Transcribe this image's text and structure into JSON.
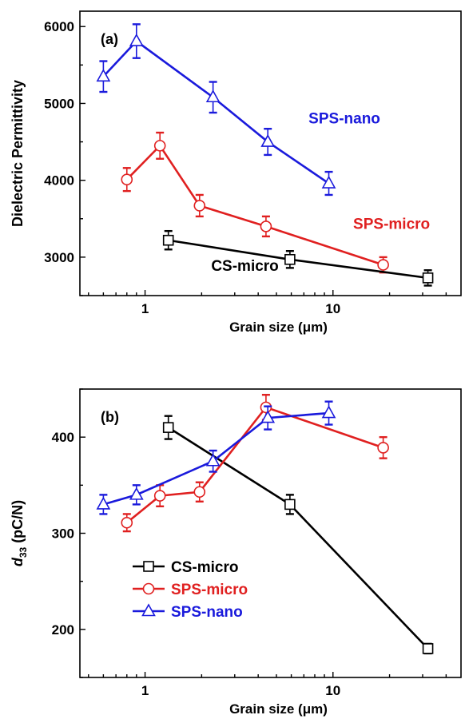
{
  "chart_data": [
    {
      "type": "line",
      "panel_label": "(a)",
      "xlabel": "Grain size (μm)",
      "ylabel": "Dielectric Permittivity",
      "xscale": "log",
      "xlim": [
        0.45,
        48
      ],
      "ylim": [
        2500,
        6200
      ],
      "xticks": [
        {
          "v": 1,
          "label": "1"
        },
        {
          "v": 10,
          "label": "10"
        }
      ],
      "yticks": [
        {
          "v": 3000,
          "label": "3000"
        },
        {
          "v": 4000,
          "label": "4000"
        },
        {
          "v": 5000,
          "label": "5000"
        },
        {
          "v": 6000,
          "label": "6000"
        }
      ],
      "legend": "none (inline series labels)",
      "series": [
        {
          "name": "SPS-nano",
          "color": "#1a1adc",
          "marker": "triangle",
          "x": [
            0.6,
            0.9,
            2.3,
            4.5,
            9.5
          ],
          "y": [
            5350,
            5810,
            5080,
            4500,
            3960
          ],
          "err": [
            200,
            220,
            200,
            170,
            150
          ]
        },
        {
          "name": "SPS-micro",
          "color": "#e02020",
          "marker": "circle",
          "x": [
            0.8,
            1.2,
            1.95,
            4.4,
            18.5
          ],
          "y": [
            4010,
            4450,
            3670,
            3400,
            2900
          ],
          "err": [
            150,
            170,
            140,
            130,
            100
          ]
        },
        {
          "name": "CS-micro",
          "color": "#000000",
          "marker": "square",
          "x": [
            1.33,
            5.9,
            32
          ],
          "y": [
            3220,
            2970,
            2730
          ],
          "err": [
            120,
            110,
            100
          ]
        }
      ],
      "annotations": [
        {
          "text": "SPS-nano",
          "color": "#1a1adc",
          "x": 11.5,
          "y": 4740
        },
        {
          "text": "SPS-micro",
          "color": "#e02020",
          "x": 20.5,
          "y": 3370
        },
        {
          "text": "CS-micro",
          "color": "#000000",
          "x": 3.4,
          "y": 2820
        }
      ]
    },
    {
      "type": "line",
      "panel_label": "(b)",
      "xlabel": "Grain size (μm)",
      "ylabel_italic": "d",
      "ylabel_sub": "33",
      "ylabel_rest": " (pC/N)",
      "xscale": "log",
      "xlim": [
        0.45,
        48
      ],
      "ylim": [
        150,
        450
      ],
      "xticks": [
        {
          "v": 1,
          "label": "1"
        },
        {
          "v": 10,
          "label": "10"
        }
      ],
      "yticks": [
        {
          "v": 200,
          "label": "200"
        },
        {
          "v": 300,
          "label": "300"
        },
        {
          "v": 400,
          "label": "400"
        }
      ],
      "legend": "lower-left",
      "series": [
        {
          "name": "CS-micro",
          "color": "#000000",
          "marker": "square",
          "x": [
            1.33,
            5.9,
            32
          ],
          "y": [
            410,
            330,
            180
          ],
          "err": [
            12,
            10,
            5
          ]
        },
        {
          "name": "SPS-micro",
          "color": "#e02020",
          "marker": "circle",
          "x": [
            0.8,
            1.2,
            1.95,
            4.4,
            18.5
          ],
          "y": [
            311,
            339,
            343,
            431,
            389
          ],
          "err": [
            9,
            11,
            10,
            13,
            11
          ]
        },
        {
          "name": "SPS-nano",
          "color": "#1a1adc",
          "marker": "triangle",
          "x": [
            0.6,
            0.9,
            2.3,
            4.5,
            9.5
          ],
          "y": [
            330,
            340,
            375,
            420,
            425
          ],
          "err": [
            10,
            10,
            11,
            12,
            12
          ]
        }
      ]
    }
  ]
}
